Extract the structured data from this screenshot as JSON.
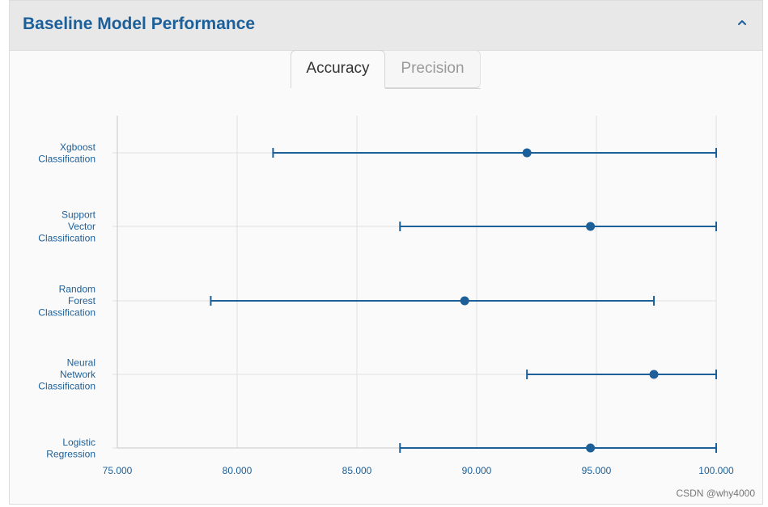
{
  "panel": {
    "title": "Baseline Model Performance",
    "collapse_icon": "chevron-up-icon"
  },
  "tabs": [
    {
      "label": "Accuracy",
      "active": true
    },
    {
      "label": "Precision",
      "active": false
    }
  ],
  "watermark": "CSDN @why4000",
  "colors": {
    "series": "#1c5f99",
    "grid": "#e0e0e0",
    "axis": "#c8c8c8",
    "label": "#1c5f99"
  },
  "chart_data": {
    "type": "scatter",
    "orientation": "horizontal",
    "title": "",
    "xlabel": "",
    "ylabel": "",
    "xlim": [
      75,
      100
    ],
    "x_ticks": [
      75,
      80,
      85,
      90,
      95,
      100
    ],
    "x_tick_labels": [
      "75.000",
      "80.000",
      "85.000",
      "90.000",
      "95.000",
      "100.000"
    ],
    "grid": true,
    "categories": [
      {
        "label_lines": [
          "Xgboost",
          "Classification"
        ],
        "value": 92.1,
        "low": 81.5,
        "high": 100.0
      },
      {
        "label_lines": [
          "Support",
          "Vector",
          "Classification"
        ],
        "value": 94.75,
        "low": 86.8,
        "high": 100.0
      },
      {
        "label_lines": [
          "Random",
          "Forest",
          "Classification"
        ],
        "value": 89.5,
        "low": 78.9,
        "high": 97.4
      },
      {
        "label_lines": [
          "Neural",
          "Network",
          "Classification"
        ],
        "value": 97.4,
        "low": 92.1,
        "high": 100.0
      },
      {
        "label_lines": [
          "Logistic",
          "Regression"
        ],
        "value": 94.75,
        "low": 86.8,
        "high": 100.0
      }
    ]
  }
}
